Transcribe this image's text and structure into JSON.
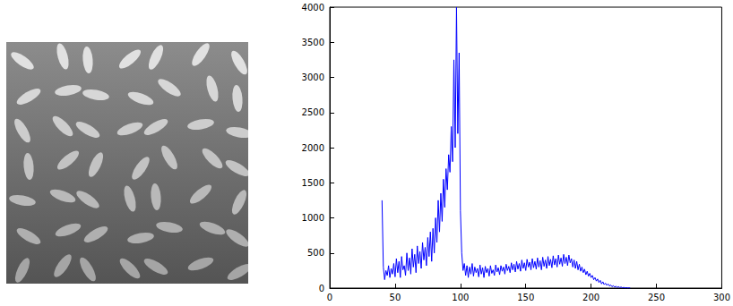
{
  "chart_data": {
    "type": "line",
    "color": "#0000ff",
    "grid": false,
    "xlim": [
      0,
      300
    ],
    "xticks": [
      0,
      50,
      100,
      150,
      200,
      250,
      300
    ],
    "ylim": [
      0,
      4000
    ],
    "yticks": [
      0,
      500,
      1000,
      1500,
      2000,
      2500,
      3000,
      3500,
      4000
    ],
    "x": [
      40,
      41,
      42,
      43,
      44,
      45,
      46,
      47,
      48,
      49,
      50,
      51,
      52,
      53,
      54,
      55,
      56,
      57,
      58,
      59,
      60,
      61,
      62,
      63,
      64,
      65,
      66,
      67,
      68,
      69,
      70,
      71,
      72,
      73,
      74,
      75,
      76,
      77,
      78,
      79,
      80,
      81,
      82,
      83,
      84,
      85,
      86,
      87,
      88,
      89,
      90,
      91,
      92,
      93,
      94,
      95,
      96,
      97,
      98,
      99,
      100,
      101,
      102,
      103,
      104,
      105,
      106,
      107,
      108,
      109,
      110,
      111,
      112,
      113,
      114,
      115,
      116,
      117,
      118,
      119,
      120,
      121,
      122,
      123,
      124,
      125,
      126,
      127,
      128,
      129,
      130,
      131,
      132,
      133,
      134,
      135,
      136,
      137,
      138,
      139,
      140,
      141,
      142,
      143,
      144,
      145,
      146,
      147,
      148,
      149,
      150,
      151,
      152,
      153,
      154,
      155,
      156,
      157,
      158,
      159,
      160,
      161,
      162,
      163,
      164,
      165,
      166,
      167,
      168,
      169,
      170,
      171,
      172,
      173,
      174,
      175,
      176,
      177,
      178,
      179,
      180,
      181,
      182,
      183,
      184,
      185,
      186,
      187,
      188,
      189,
      190,
      191,
      192,
      193,
      194,
      195,
      196,
      197,
      198,
      199,
      200,
      201,
      202,
      203,
      204,
      205,
      206,
      207,
      208,
      209,
      210,
      211,
      212,
      213,
      214,
      215,
      216,
      217,
      218,
      219,
      220,
      221,
      222,
      223,
      224,
      225,
      226,
      227,
      228,
      229,
      230
    ],
    "values": [
      1250,
      300,
      120,
      250,
      180,
      320,
      150,
      280,
      200,
      350,
      160,
      420,
      220,
      380,
      150,
      450,
      260,
      320,
      180,
      500,
      250,
      430,
      200,
      560,
      300,
      480,
      220,
      600,
      350,
      520,
      280,
      650,
      400,
      580,
      320,
      720,
      450,
      800,
      380,
      850,
      500,
      1000,
      650,
      1250,
      800,
      1350,
      950,
      1550,
      1150,
      1700,
      1400,
      1900,
      1650,
      2300,
      1800,
      3250,
      2000,
      4000,
      2200,
      3350,
      1100,
      500,
      250,
      350,
      180,
      320,
      150,
      300,
      200,
      350,
      170,
      300,
      220,
      280,
      160,
      330,
      200,
      290,
      150,
      310,
      220,
      280,
      170,
      320,
      210,
      260,
      180,
      330,
      230,
      290,
      190,
      320,
      240,
      300,
      200,
      340,
      250,
      310,
      220,
      360,
      260,
      340,
      230,
      380,
      270,
      350,
      240,
      400,
      280,
      360,
      250,
      410,
      300,
      370,
      260,
      420,
      290,
      380,
      270,
      430,
      300,
      390,
      260,
      440,
      310,
      400,
      280,
      450,
      320,
      410,
      290,
      460,
      330,
      420,
      300,
      470,
      340,
      430,
      310,
      480,
      350,
      440,
      320,
      470,
      360,
      420,
      300,
      400,
      280,
      380,
      260,
      340,
      240,
      300,
      220,
      270,
      190,
      240,
      170,
      210,
      150,
      180,
      120,
      150,
      100,
      130,
      80,
      110,
      60,
      90,
      50,
      70,
      40,
      60,
      30,
      45,
      20,
      35,
      15,
      25,
      10,
      20,
      8,
      15,
      5,
      10,
      3,
      6,
      2,
      4,
      0
    ]
  }
}
